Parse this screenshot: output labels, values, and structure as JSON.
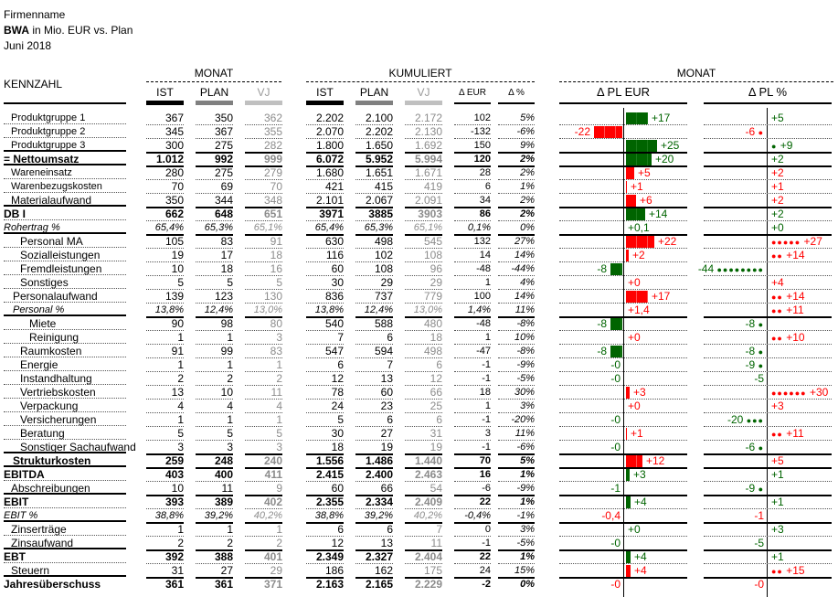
{
  "header": {
    "company": "Firmenname",
    "report_bold": "BWA",
    "report_rest": " in Mio. EUR vs. Plan",
    "period": "Juni 2018"
  },
  "groups": {
    "monat": "MONAT",
    "kumuliert": "KUMULIERT",
    "monat_chart": "MONAT"
  },
  "columns": {
    "kennzahl": "KENNZAHL",
    "ist": "IST",
    "plan": "PLAN",
    "vj": "VJ",
    "k_ist": "IST",
    "k_plan": "PLAN",
    "k_vj": "VJ",
    "d_eur": "Δ EUR",
    "d_pct": "Δ %",
    "chart_eur": "Δ PL EUR",
    "chart_pct": "Δ PL %"
  },
  "colors": {
    "ist": "#000000",
    "plan": "#808080",
    "vj": "#c0c0c0",
    "positive": "#006400",
    "negative": "#ff0000"
  },
  "rows": [
    {
      "label": "Produktgruppe 1",
      "ist": "367",
      "plan": "350",
      "vj": "362",
      "k_ist": "2.202",
      "k_plan": "2.100",
      "k_vj": "2.172",
      "d_eur": "102",
      "d_pct": "5%",
      "eur": "+17",
      "eur_val": 17,
      "eur_color": "green",
      "pct": "+5",
      "pct_val": 5,
      "pct_color": "green",
      "pct_dots": 0,
      "style": "small",
      "sep": "dot",
      "indent": 8
    },
    {
      "label": "Produktgruppe 2",
      "ist": "345",
      "plan": "367",
      "vj": "355",
      "k_ist": "2.070",
      "k_plan": "2.202",
      "k_vj": "2.130",
      "d_eur": "-132",
      "d_pct": "-6%",
      "eur": "-22",
      "eur_val": -22,
      "eur_color": "red",
      "pct": "-6",
      "pct_val": -6,
      "pct_color": "red",
      "pct_dots": 1,
      "style": "small",
      "sep": "dot",
      "indent": 8
    },
    {
      "label": "Produktgruppe 3",
      "ist": "300",
      "plan": "275",
      "vj": "282",
      "k_ist": "1.800",
      "k_plan": "1.650",
      "k_vj": "1.692",
      "d_eur": "150",
      "d_pct": "9%",
      "eur": "+25",
      "eur_val": 25,
      "eur_color": "green",
      "pct": "+9",
      "pct_val": 9,
      "pct_color": "green",
      "pct_dots": 1,
      "style": "small",
      "sep": "solid",
      "indent": 8
    },
    {
      "label": "= Nettoumsatz",
      "ist": "1.012",
      "plan": "992",
      "vj": "999",
      "k_ist": "6.072",
      "k_plan": "5.952",
      "k_vj": "5.994",
      "d_eur": "120",
      "d_pct": "2%",
      "eur": "+20",
      "eur_val": 20,
      "eur_color": "green",
      "pct": "+2",
      "pct_val": 2,
      "pct_color": "green",
      "pct_dots": 0,
      "style": "bold",
      "sep": "solid",
      "indent": 0
    },
    {
      "label": "Wareneinsatz",
      "ist": "280",
      "plan": "275",
      "vj": "279",
      "k_ist": "1.680",
      "k_plan": "1.651",
      "k_vj": "1.671",
      "d_eur": "28",
      "d_pct": "2%",
      "eur": "+5",
      "eur_val": 5,
      "eur_color": "red",
      "pct": "+2",
      "pct_val": 2,
      "pct_color": "red",
      "pct_dots": 0,
      "style": "small",
      "sep": "dot",
      "indent": 8
    },
    {
      "label": "Warenbezugskosten",
      "ist": "70",
      "plan": "69",
      "vj": "70",
      "k_ist": "421",
      "k_plan": "415",
      "k_vj": "419",
      "d_eur": "6",
      "d_pct": "1%",
      "eur": "+1",
      "eur_val": 1,
      "eur_color": "red",
      "pct": "+1",
      "pct_val": 1,
      "pct_color": "red",
      "pct_dots": 0,
      "style": "small",
      "sep": "dot",
      "indent": 8
    },
    {
      "label": "Materialaufwand",
      "ist": "350",
      "plan": "344",
      "vj": "348",
      "k_ist": "2.101",
      "k_plan": "2.067",
      "k_vj": "2.091",
      "d_eur": "34",
      "d_pct": "2%",
      "eur": "+6",
      "eur_val": 6,
      "eur_color": "red",
      "pct": "+2",
      "pct_val": 2,
      "pct_color": "red",
      "pct_dots": 0,
      "style": "",
      "sep": "solid",
      "indent": 8
    },
    {
      "label": "DB I",
      "ist": "662",
      "plan": "648",
      "vj": "651",
      "k_ist": "3971",
      "k_plan": "3885",
      "k_vj": "3903",
      "d_eur": "86",
      "d_pct": "2%",
      "eur": "+14",
      "eur_val": 14,
      "eur_color": "green",
      "pct": "+2",
      "pct_val": 2,
      "pct_color": "green",
      "pct_dots": 0,
      "style": "bold",
      "sep": "dot",
      "indent": 0
    },
    {
      "label": "Rohertrag %",
      "ist": "65,4%",
      "plan": "65,3%",
      "vj": "65,1%",
      "k_ist": "65,4%",
      "k_plan": "65,3%",
      "k_vj": "65,1%",
      "d_eur": "0,1%",
      "d_pct": "0%",
      "eur": "+0,1",
      "eur_val": 0,
      "eur_color": "green",
      "pct": "+0",
      "pct_val": 0,
      "pct_color": "green",
      "pct_dots": 0,
      "style": "italic",
      "sep": "solid",
      "indent": 0
    },
    {
      "label": "Personal MA",
      "ist": "105",
      "plan": "83",
      "vj": "91",
      "k_ist": "630",
      "k_plan": "498",
      "k_vj": "545",
      "d_eur": "132",
      "d_pct": "27%",
      "eur": "+22",
      "eur_val": 22,
      "eur_color": "red",
      "pct": "+27",
      "pct_val": 27,
      "pct_color": "red",
      "pct_dots": 5,
      "style": "",
      "sep": "dot",
      "indent": 18
    },
    {
      "label": "Sozialleistungen",
      "ist": "19",
      "plan": "17",
      "vj": "18",
      "k_ist": "116",
      "k_plan": "102",
      "k_vj": "108",
      "d_eur": "14",
      "d_pct": "14%",
      "eur": "+2",
      "eur_val": 2,
      "eur_color": "red",
      "pct": "+14",
      "pct_val": 14,
      "pct_color": "red",
      "pct_dots": 2,
      "style": "",
      "sep": "dot",
      "indent": 18
    },
    {
      "label": "Fremdleistungen",
      "ist": "10",
      "plan": "18",
      "vj": "16",
      "k_ist": "60",
      "k_plan": "108",
      "k_vj": "96",
      "d_eur": "-48",
      "d_pct": "-44%",
      "eur": "-8",
      "eur_val": -8,
      "eur_color": "green",
      "pct": "-44",
      "pct_val": -44,
      "pct_color": "green",
      "pct_dots": 8,
      "style": "",
      "sep": "dot",
      "indent": 18
    },
    {
      "label": "Sonstiges",
      "ist": "5",
      "plan": "5",
      "vj": "5",
      "k_ist": "30",
      "k_plan": "29",
      "k_vj": "29",
      "d_eur": "1",
      "d_pct": "4%",
      "eur": "+0",
      "eur_val": 0,
      "eur_color": "red",
      "pct": "+4",
      "pct_val": 4,
      "pct_color": "red",
      "pct_dots": 0,
      "style": "",
      "sep": "dot",
      "indent": 18
    },
    {
      "label": "Personalaufwand",
      "ist": "139",
      "plan": "123",
      "vj": "130",
      "k_ist": "836",
      "k_plan": "737",
      "k_vj": "779",
      "d_eur": "100",
      "d_pct": "14%",
      "eur": "+17",
      "eur_val": 17,
      "eur_color": "red",
      "pct": "+14",
      "pct_val": 14,
      "pct_color": "red",
      "pct_dots": 2,
      "style": "",
      "sep": "dot",
      "indent": 10
    },
    {
      "label": "Personal %",
      "ist": "13,8%",
      "plan": "12,4%",
      "vj": "13,0%",
      "k_ist": "13,8%",
      "k_plan": "12,4%",
      "k_vj": "13,0%",
      "d_eur": "1,4%",
      "d_pct": "11%",
      "eur": "+1,4",
      "eur_val": 0,
      "eur_color": "red",
      "pct": "+11",
      "pct_val": 11,
      "pct_color": "red",
      "pct_dots": 2,
      "style": "italic",
      "sep": "solid",
      "indent": 10
    },
    {
      "label": "Miete",
      "ist": "90",
      "plan": "98",
      "vj": "80",
      "k_ist": "540",
      "k_plan": "588",
      "k_vj": "480",
      "d_eur": "-48",
      "d_pct": "-8%",
      "eur": "-8",
      "eur_val": -8,
      "eur_color": "green",
      "pct": "-8",
      "pct_val": -8,
      "pct_color": "green",
      "pct_dots": 1,
      "style": "",
      "sep": "dot",
      "indent": 28
    },
    {
      "label": "Reinigung",
      "ist": "1",
      "plan": "1",
      "vj": "3",
      "k_ist": "7",
      "k_plan": "6",
      "k_vj": "18",
      "d_eur": "1",
      "d_pct": "10%",
      "eur": "+0",
      "eur_val": 0,
      "eur_color": "red",
      "pct": "+10",
      "pct_val": 10,
      "pct_color": "red",
      "pct_dots": 2,
      "style": "",
      "sep": "dot",
      "indent": 28
    },
    {
      "label": "Raumkosten",
      "ist": "91",
      "plan": "99",
      "vj": "83",
      "k_ist": "547",
      "k_plan": "594",
      "k_vj": "498",
      "d_eur": "-47",
      "d_pct": "-8%",
      "eur": "-8",
      "eur_val": -8,
      "eur_color": "green",
      "pct": "-8",
      "pct_val": -8,
      "pct_color": "green",
      "pct_dots": 1,
      "style": "",
      "sep": "dot",
      "indent": 18
    },
    {
      "label": "Energie",
      "ist": "1",
      "plan": "1",
      "vj": "1",
      "k_ist": "6",
      "k_plan": "7",
      "k_vj": "6",
      "d_eur": "-1",
      "d_pct": "-9%",
      "eur": "-0",
      "eur_val": 0,
      "eur_color": "green",
      "pct": "-9",
      "pct_val": -9,
      "pct_color": "green",
      "pct_dots": 1,
      "style": "",
      "sep": "dot",
      "indent": 18
    },
    {
      "label": "Instandhaltung",
      "ist": "2",
      "plan": "2",
      "vj": "2",
      "k_ist": "12",
      "k_plan": "13",
      "k_vj": "12",
      "d_eur": "-1",
      "d_pct": "-5%",
      "eur": "-0",
      "eur_val": 0,
      "eur_color": "green",
      "pct": "-5",
      "pct_val": -5,
      "pct_color": "green",
      "pct_dots": 0,
      "style": "",
      "sep": "dot",
      "indent": 18
    },
    {
      "label": "Vertriebskosten",
      "ist": "13",
      "plan": "10",
      "vj": "11",
      "k_ist": "78",
      "k_plan": "60",
      "k_vj": "66",
      "d_eur": "18",
      "d_pct": "30%",
      "eur": "+3",
      "eur_val": 3,
      "eur_color": "red",
      "pct": "+30",
      "pct_val": 30,
      "pct_color": "red",
      "pct_dots": 6,
      "style": "",
      "sep": "dot",
      "indent": 18
    },
    {
      "label": "Verpackung",
      "ist": "4",
      "plan": "4",
      "vj": "4",
      "k_ist": "24",
      "k_plan": "23",
      "k_vj": "25",
      "d_eur": "1",
      "d_pct": "3%",
      "eur": "+0",
      "eur_val": 0,
      "eur_color": "red",
      "pct": "+3",
      "pct_val": 3,
      "pct_color": "red",
      "pct_dots": 0,
      "style": "",
      "sep": "dot",
      "indent": 18
    },
    {
      "label": "Versicherungen",
      "ist": "1",
      "plan": "1",
      "vj": "1",
      "k_ist": "5",
      "k_plan": "6",
      "k_vj": "6",
      "d_eur": "-1",
      "d_pct": "-20%",
      "eur": "-0",
      "eur_val": 0,
      "eur_color": "green",
      "pct": "-20",
      "pct_val": -20,
      "pct_color": "green",
      "pct_dots": 3,
      "style": "",
      "sep": "dot",
      "indent": 18
    },
    {
      "label": "Beratung",
      "ist": "5",
      "plan": "5",
      "vj": "5",
      "k_ist": "30",
      "k_plan": "27",
      "k_vj": "31",
      "d_eur": "3",
      "d_pct": "11%",
      "eur": "+1",
      "eur_val": 1,
      "eur_color": "red",
      "pct": "+11",
      "pct_val": 11,
      "pct_color": "red",
      "pct_dots": 2,
      "style": "",
      "sep": "dot",
      "indent": 18
    },
    {
      "label": "Sonstiger Sachaufwand",
      "ist": "3",
      "plan": "3",
      "vj": "3",
      "k_ist": "18",
      "k_plan": "19",
      "k_vj": "19",
      "d_eur": "-1",
      "d_pct": "-6%",
      "eur": "-0",
      "eur_val": 0,
      "eur_color": "green",
      "pct": "-6",
      "pct_val": -6,
      "pct_color": "green",
      "pct_dots": 1,
      "style": "",
      "sep": "solid",
      "indent": 18
    },
    {
      "label": "Strukturkosten",
      "ist": "259",
      "plan": "248",
      "vj": "240",
      "k_ist": "1.556",
      "k_plan": "1.486",
      "k_vj": "1.440",
      "d_eur": "70",
      "d_pct": "5%",
      "eur": "+12",
      "eur_val": 12,
      "eur_color": "red",
      "pct": "+5",
      "pct_val": 5,
      "pct_color": "red",
      "pct_dots": 0,
      "style": "bold",
      "sep": "solid",
      "indent": 10
    },
    {
      "label": "EBITDA",
      "ist": "403",
      "plan": "400",
      "vj": "411",
      "k_ist": "2.415",
      "k_plan": "2.400",
      "k_vj": "2.463",
      "d_eur": "16",
      "d_pct": "1%",
      "eur": "+3",
      "eur_val": 3,
      "eur_color": "green",
      "pct": "+1",
      "pct_val": 1,
      "pct_color": "green",
      "pct_dots": 0,
      "style": "bold",
      "sep": "dot",
      "indent": 0
    },
    {
      "label": "Abschreibungen",
      "ist": "10",
      "plan": "11",
      "vj": "9",
      "k_ist": "60",
      "k_plan": "66",
      "k_vj": "54",
      "d_eur": "-6",
      "d_pct": "-9%",
      "eur": "-1",
      "eur_val": 0,
      "eur_color": "green",
      "pct": "-9",
      "pct_val": -9,
      "pct_color": "green",
      "pct_dots": 1,
      "style": "",
      "sep": "solid",
      "indent": 8
    },
    {
      "label": "EBIT",
      "ist": "393",
      "plan": "389",
      "vj": "402",
      "k_ist": "2.355",
      "k_plan": "2.334",
      "k_vj": "2.409",
      "d_eur": "22",
      "d_pct": "1%",
      "eur": "+4",
      "eur_val": 4,
      "eur_color": "green",
      "pct": "+1",
      "pct_val": 1,
      "pct_color": "green",
      "pct_dots": 0,
      "style": "bold",
      "sep": "dot",
      "indent": 0
    },
    {
      "label": "EBIT %",
      "ist": "38,8%",
      "plan": "39,2%",
      "vj": "40,2%",
      "k_ist": "38,8%",
      "k_plan": "39,2%",
      "k_vj": "40,2%",
      "d_eur": "-0,4%",
      "d_pct": "-1%",
      "eur": "-0,4",
      "eur_val": 0,
      "eur_color": "red",
      "pct": "-1",
      "pct_val": -1,
      "pct_color": "red",
      "pct_dots": 0,
      "style": "italic",
      "sep": "solid",
      "indent": 0
    },
    {
      "label": "Zinserträge",
      "ist": "1",
      "plan": "1",
      "vj": "1",
      "k_ist": "6",
      "k_plan": "6",
      "k_vj": "7",
      "d_eur": "0",
      "d_pct": "3%",
      "eur": "+0",
      "eur_val": 0,
      "eur_color": "green",
      "pct": "+3",
      "pct_val": 3,
      "pct_color": "green",
      "pct_dots": 0,
      "style": "",
      "sep": "dot",
      "indent": 8
    },
    {
      "label": "Zinsaufwand",
      "ist": "2",
      "plan": "2",
      "vj": "2",
      "k_ist": "12",
      "k_plan": "13",
      "k_vj": "11",
      "d_eur": "-1",
      "d_pct": "-5%",
      "eur": "-0",
      "eur_val": 0,
      "eur_color": "green",
      "pct": "-5",
      "pct_val": -5,
      "pct_color": "green",
      "pct_dots": 0,
      "style": "",
      "sep": "solid",
      "indent": 8
    },
    {
      "label": "EBT",
      "ist": "392",
      "plan": "388",
      "vj": "401",
      "k_ist": "2.349",
      "k_plan": "2.327",
      "k_vj": "2.404",
      "d_eur": "22",
      "d_pct": "1%",
      "eur": "+4",
      "eur_val": 4,
      "eur_color": "green",
      "pct": "+1",
      "pct_val": 1,
      "pct_color": "green",
      "pct_dots": 0,
      "style": "bold",
      "sep": "dot",
      "indent": 0
    },
    {
      "label": "Steuern",
      "ist": "31",
      "plan": "27",
      "vj": "29",
      "k_ist": "186",
      "k_plan": "162",
      "k_vj": "175",
      "d_eur": "24",
      "d_pct": "15%",
      "eur": "+4",
      "eur_val": 4,
      "eur_color": "red",
      "pct": "+15",
      "pct_val": 15,
      "pct_color": "red",
      "pct_dots": 2,
      "style": "",
      "sep": "solid",
      "indent": 8
    },
    {
      "label": "Jahresüberschuss",
      "ist": "361",
      "plan": "361",
      "vj": "371",
      "k_ist": "2.163",
      "k_plan": "2.165",
      "k_vj": "2.229",
      "d_eur": "-2",
      "d_pct": "0%",
      "eur": "-0",
      "eur_val": 0,
      "eur_color": "red",
      "pct": "-0",
      "pct_val": 0,
      "pct_color": "red",
      "pct_dots": 0,
      "style": "bold",
      "sep": "none",
      "indent": 0
    }
  ]
}
